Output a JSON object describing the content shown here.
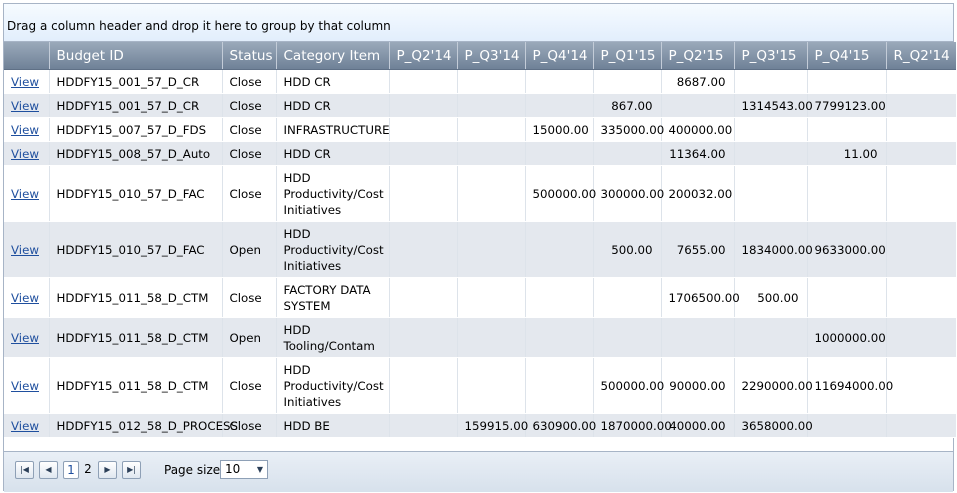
{
  "group_panel": {
    "text": "Drag a column header and drop it here to group by that column"
  },
  "columns": [
    "",
    "Budget ID",
    "Status",
    "Category Item",
    "P_Q2'14",
    "P_Q3'14",
    "P_Q4'14",
    "P_Q1'15",
    "P_Q2'15",
    "P_Q3'15",
    "P_Q4'15",
    "R_Q2'14"
  ],
  "rows": [
    {
      "view": "View",
      "budget_id": "HDDFY15_001_57_D_CR",
      "status": "Close",
      "category": "HDD CR",
      "p_q2_14": "",
      "p_q3_14": "",
      "p_q4_14": "",
      "p_q1_15": "",
      "p_q2_15": "8687.00",
      "p_q3_15": "",
      "p_q4_15": "",
      "r_q2_14": ""
    },
    {
      "view": "View",
      "budget_id": "HDDFY15_001_57_D_CR",
      "status": "Close",
      "category": "HDD CR",
      "p_q2_14": "",
      "p_q3_14": "",
      "p_q4_14": "",
      "p_q1_15": "867.00",
      "p_q2_15": "",
      "p_q3_15": "1314543.00",
      "p_q4_15": "7799123.00",
      "r_q2_14": ""
    },
    {
      "view": "View",
      "budget_id": "HDDFY15_007_57_D_FDS",
      "status": "Close",
      "category": "INFRASTRUCTURE",
      "p_q2_14": "",
      "p_q3_14": "",
      "p_q4_14": "15000.00",
      "p_q1_15": "335000.00",
      "p_q2_15": "400000.00",
      "p_q3_15": "",
      "p_q4_15": "",
      "r_q2_14": ""
    },
    {
      "view": "View",
      "budget_id": "HDDFY15_008_57_D_Auto",
      "status": "Close",
      "category": "HDD CR",
      "p_q2_14": "",
      "p_q3_14": "",
      "p_q4_14": "",
      "p_q1_15": "",
      "p_q2_15": "11364.00",
      "p_q3_15": "",
      "p_q4_15": "11.00",
      "r_q2_14": ""
    },
    {
      "view": "View",
      "budget_id": "HDDFY15_010_57_D_FAC",
      "status": "Close",
      "category": "HDD Productivity/Cost Initiatives",
      "p_q2_14": "",
      "p_q3_14": "",
      "p_q4_14": "500000.00",
      "p_q1_15": "300000.00",
      "p_q2_15": "200032.00",
      "p_q3_15": "",
      "p_q4_15": "",
      "r_q2_14": ""
    },
    {
      "view": "View",
      "budget_id": "HDDFY15_010_57_D_FAC",
      "status": "Open",
      "category": "HDD Productivity/Cost Initiatives",
      "p_q2_14": "",
      "p_q3_14": "",
      "p_q4_14": "",
      "p_q1_15": "500.00",
      "p_q2_15": "7655.00",
      "p_q3_15": "1834000.00",
      "p_q4_15": "9633000.00",
      "r_q2_14": ""
    },
    {
      "view": "View",
      "budget_id": "HDDFY15_011_58_D_CTM",
      "status": "Close",
      "category": "FACTORY DATA SYSTEM",
      "p_q2_14": "",
      "p_q3_14": "",
      "p_q4_14": "",
      "p_q1_15": "",
      "p_q2_15": "1706500.00",
      "p_q3_15": "500.00",
      "p_q4_15": "",
      "r_q2_14": ""
    },
    {
      "view": "View",
      "budget_id": "HDDFY15_011_58_D_CTM",
      "status": "Open",
      "category": "HDD Tooling/Contam",
      "p_q2_14": "",
      "p_q3_14": "",
      "p_q4_14": "",
      "p_q1_15": "",
      "p_q2_15": "",
      "p_q3_15": "",
      "p_q4_15": "1000000.00",
      "r_q2_14": ""
    },
    {
      "view": "View",
      "budget_id": "HDDFY15_011_58_D_CTM",
      "status": "Close",
      "category": "HDD Productivity/Cost Initiatives",
      "p_q2_14": "",
      "p_q3_14": "",
      "p_q4_14": "",
      "p_q1_15": "500000.00",
      "p_q2_15": "90000.00",
      "p_q3_15": "2290000.00",
      "p_q4_15": "11694000.00",
      "r_q2_14": ""
    },
    {
      "view": "View",
      "budget_id": "HDDFY15_012_58_D_PROCESS",
      "status": "Close",
      "category": "HDD BE",
      "p_q2_14": "",
      "p_q3_14": "159915.00",
      "p_q4_14": "630900.00",
      "p_q1_15": "1870000.00",
      "p_q2_15": "40000.00",
      "p_q3_15": "3658000.00",
      "p_q4_15": "",
      "r_q2_14": ""
    }
  ],
  "pager": {
    "first_icon": "first-page-icon",
    "prev_icon": "prev-page-icon",
    "next_icon": "next-page-icon",
    "last_icon": "last-page-icon",
    "first_glyph": "|◀",
    "prev_glyph": "◀",
    "next_glyph": "▶",
    "last_glyph": "▶|",
    "pages": [
      "1",
      "2"
    ],
    "current_page": "1",
    "page_size_label": "Page size:",
    "page_size_value": "10"
  },
  "colors": {
    "header_bg": "#7f90a5",
    "alt_row_bg": "#e4e8ee",
    "link": "#1f4f9e",
    "group_panel_bg": "#e2eefc"
  }
}
